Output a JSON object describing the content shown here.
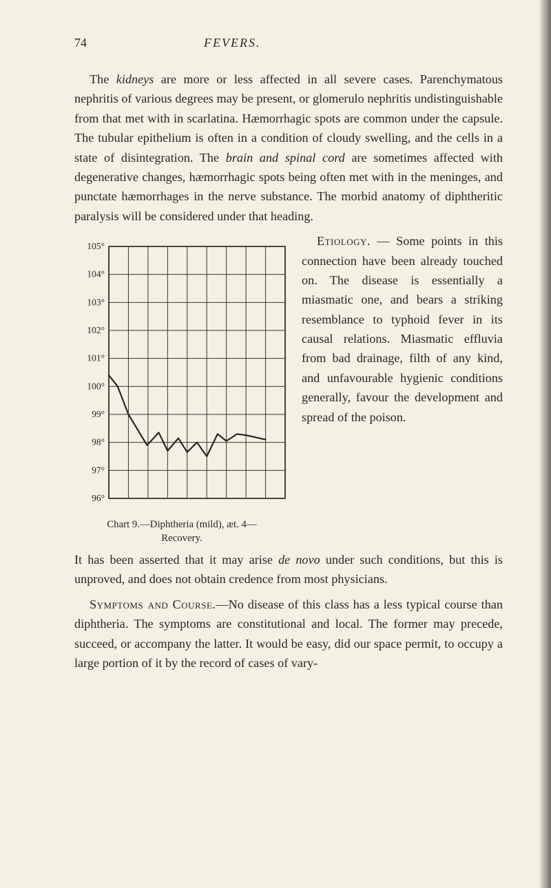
{
  "header": {
    "page_number": "74",
    "running_head": "FEVERS."
  },
  "paragraphs": {
    "p1": "The kidneys are more or less affected in all severe cases. Parenchymatous nephritis of various degrees may be present, or glomerulo nephritis undistinguishable from that met with in scarlatina. Hæmorrhagic spots are common under the capsule. The tubular epithelium is often in a condition of cloudy swelling, and the cells in a state of disintegration. The brain and spinal cord are sometimes affected with degenerative changes, hæmorrhagic spots being often met with in the meninges, and punctate hæmorrhages in the nerve substance. The morbid anatomy of diphtheritic paralysis will be considered under that heading.",
    "etiology_label": "Etiology.",
    "p2_right": " — Some points in this connection have been already touched on. The disease is essentially a miasmatic one, and bears a striking resemblance to typhoid fever in its causal relations. Miasmatic effluvia from bad drainage, filth of any kind, and unfavourable hygienic conditions generally, favour the development and spread of the poison.",
    "p3": "It has been asserted that it may arise de novo under such conditions, but this is unproved, and does not obtain credence from most physicians.",
    "symptoms_label": "Symptoms and Course.",
    "p4": "—No disease of this class has a less typical course than diphtheria. The symptoms are constitutional and local. The former may precede, succeed, or accompany the latter. It would be easy, did our space permit, to occupy a large portion of it by the record of cases of vary-"
  },
  "chart": {
    "caption_line1": "Chart 9.—Diphtheria (mild), æt. 4—",
    "caption_line2": "Recovery.",
    "y_labels": [
      "105°",
      "104°",
      "103°",
      "102°",
      "101°",
      "100°",
      "99°",
      "98°",
      "97°",
      "96°"
    ],
    "y_min": 96,
    "y_max": 105,
    "x_count": 10,
    "grid_color": "#3a332b",
    "line_color": "#2a2520",
    "line_width": 2.2,
    "background": "#f5f0e4",
    "label_fontsize": 13.5,
    "data_points": [
      {
        "x": 0.0,
        "y": 100.4
      },
      {
        "x": 0.45,
        "y": 100.0
      },
      {
        "x": 1.0,
        "y": 99.0
      },
      {
        "x": 1.95,
        "y": 97.9
      },
      {
        "x": 2.55,
        "y": 98.35
      },
      {
        "x": 3.0,
        "y": 97.7
      },
      {
        "x": 3.55,
        "y": 98.15
      },
      {
        "x": 4.0,
        "y": 97.65
      },
      {
        "x": 4.5,
        "y": 98.0
      },
      {
        "x": 5.0,
        "y": 97.5
      },
      {
        "x": 5.55,
        "y": 98.3
      },
      {
        "x": 6.0,
        "y": 98.05
      },
      {
        "x": 6.55,
        "y": 98.3
      },
      {
        "x": 7.05,
        "y": 98.25
      },
      {
        "x": 8.0,
        "y": 98.1
      }
    ]
  },
  "colors": {
    "page_bg": "#f5f0e4",
    "text": "#2a2520"
  }
}
